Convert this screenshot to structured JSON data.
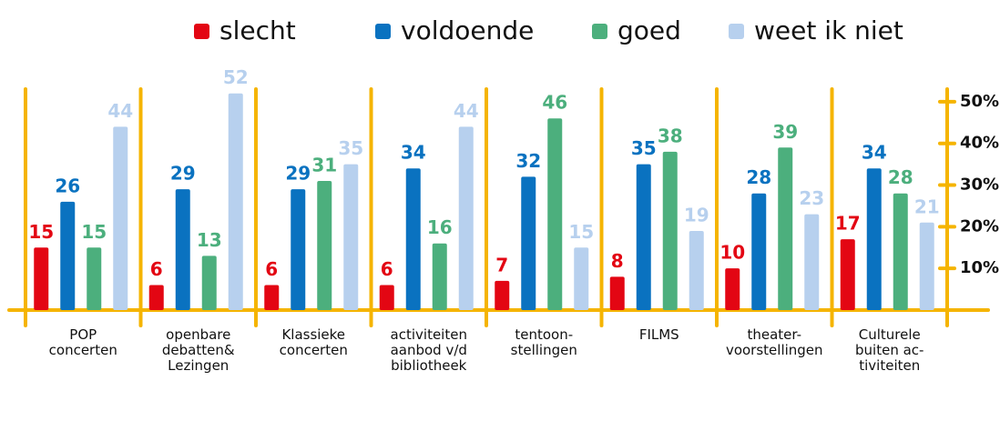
{
  "chart_data": {
    "type": "bar",
    "categories": [
      "POP\nconcerten",
      "openbare\ndebatten&\nLezingen",
      "Klassieke\nconcerten",
      "activiteiten\naanbod v/d\nbibliotheek",
      "tentoon-\nstellingen",
      "FILMS",
      "theater-\nvoorstellingen",
      "Culturele\nbuiten ac-\ntiviteiten"
    ],
    "series": [
      {
        "name": "slecht",
        "color": "#e30613",
        "values": [
          15,
          6,
          6,
          6,
          7,
          8,
          10,
          17
        ]
      },
      {
        "name": "voldoende",
        "color": "#0a72c0",
        "values": [
          26,
          29,
          29,
          34,
          32,
          35,
          28,
          34
        ]
      },
      {
        "name": "goed",
        "color": "#4caf7d",
        "values": [
          15,
          13,
          31,
          16,
          46,
          38,
          39,
          28
        ]
      },
      {
        "name": "weet ik niet",
        "color": "#b7d0ee",
        "values": [
          44,
          52,
          35,
          44,
          15,
          19,
          23,
          21
        ]
      }
    ],
    "ylim": [
      0,
      55
    ],
    "yticks": [
      {
        "value": 10,
        "label": "10%"
      },
      {
        "value": 20,
        "label": "20%"
      },
      {
        "value": 30,
        "label": "30%"
      },
      {
        "value": 40,
        "label": "40%"
      },
      {
        "value": 50,
        "label": "50%"
      }
    ],
    "axis_color": "#f5b400"
  }
}
